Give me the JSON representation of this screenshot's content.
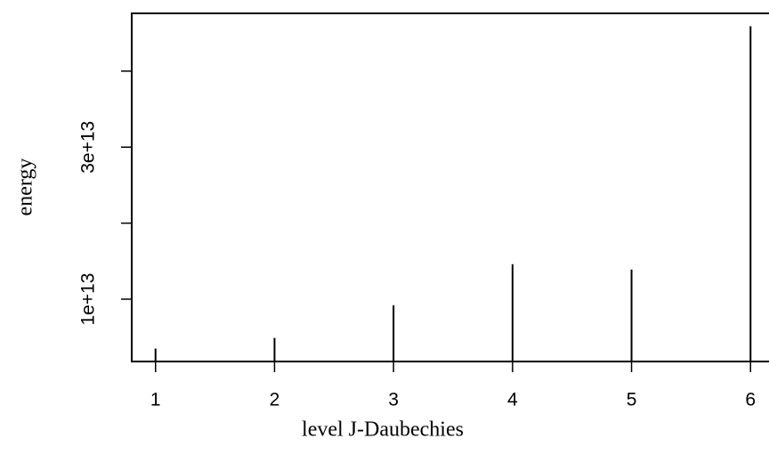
{
  "chart_data": {
    "type": "h",
    "x_label": "level J-Daubechies",
    "y_label": "energy",
    "x": [
      1,
      2,
      3,
      4,
      5,
      6
    ],
    "values": [
      3500000000000.0,
      4900000000000.0,
      9200000000000.0,
      14600000000000.0,
      13900000000000.0,
      45900000000000.0
    ],
    "color": "#000000",
    "xlim": [
      0.8,
      6.2
    ],
    "xticks": [
      1,
      2,
      3,
      4,
      5,
      6
    ],
    "ylim": [
      1800000000000.0,
      47600000000000.0
    ],
    "yticks": [
      {
        "value": 10000000000000.0,
        "label": "1e+13"
      },
      {
        "value": 20000000000000.0,
        "label": null
      },
      {
        "value": 30000000000000.0,
        "label": "3e+13"
      },
      {
        "value": 40000000000000.0,
        "label": null
      }
    ]
  }
}
